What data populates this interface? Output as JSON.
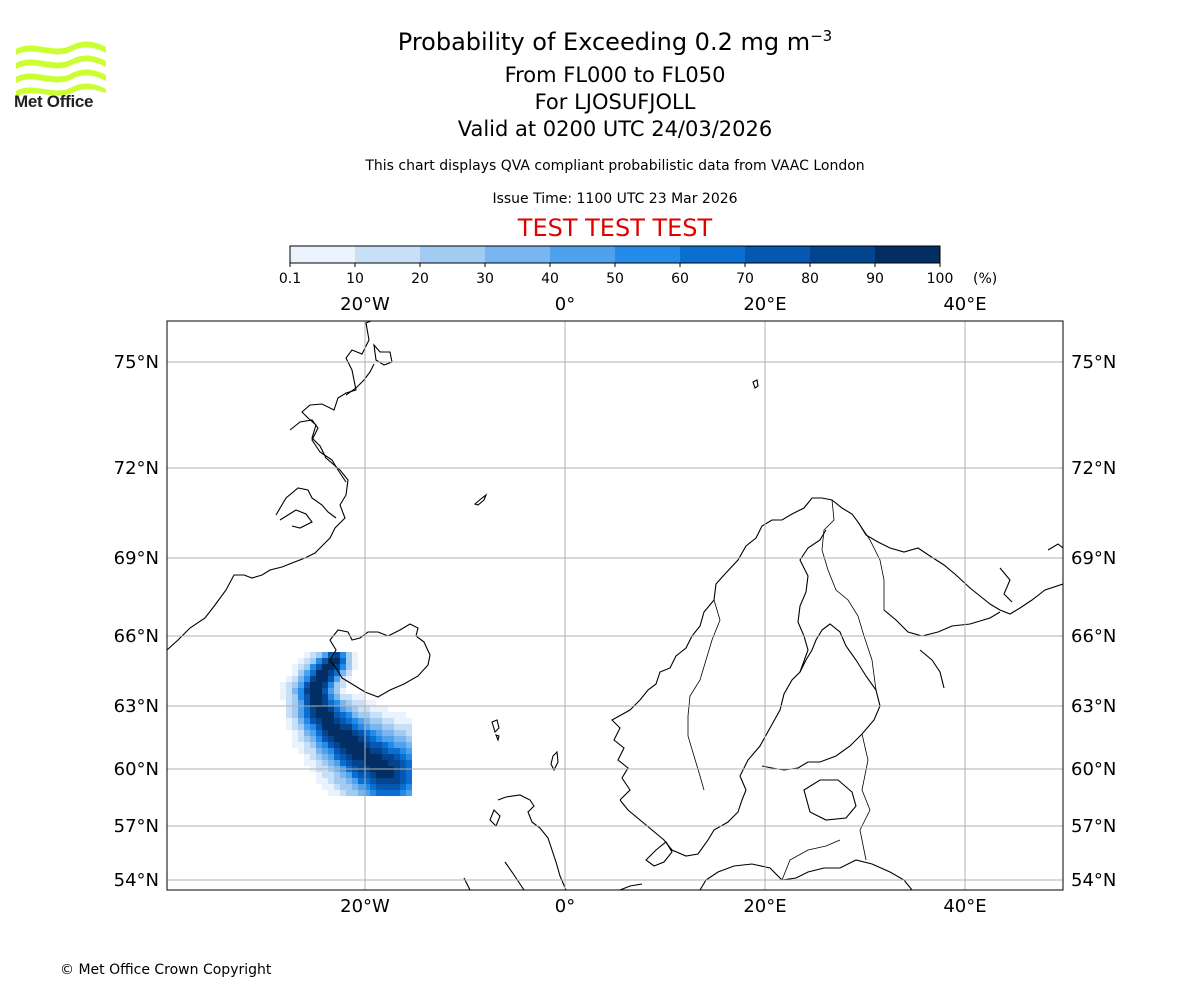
{
  "header": {
    "title": "Probability of Exceeding 0.2 mg m",
    "title_sup": "−3",
    "subtitle_levels": "From FL000 to FL050",
    "subtitle_volcano": "For LJOSUFJOLL",
    "subtitle_valid": "Valid at 0200 UTC 24/03/2026",
    "description": "This chart displays QVA compliant probabilistic data from VAAC London",
    "issue_time": "Issue Time: 1100 UTC 23 Mar 2026",
    "test_banner": "TEST TEST TEST",
    "test_color": "#e00000"
  },
  "logo": {
    "text": "Met Office",
    "icon": "met-office-wave-logo",
    "color": "#ccff33"
  },
  "colorbar": {
    "ticks": [
      "0.1",
      "10",
      "20",
      "30",
      "40",
      "50",
      "60",
      "70",
      "80",
      "90",
      "100"
    ],
    "unit": "(%)",
    "colors": [
      "#eaf3fd",
      "#c7e0f8",
      "#a2cbf2",
      "#79b6ef",
      "#4fa1ec",
      "#258bea",
      "#0a6fd1",
      "#0557b0",
      "#03448e",
      "#022e63"
    ]
  },
  "map": {
    "lon_labels_top": [
      "20°W",
      "0°",
      "20°E",
      "40°E"
    ],
    "lon_labels_bottom": [
      "20°W",
      "0°",
      "20°E",
      "40°E"
    ],
    "lat_labels": [
      "75°N",
      "72°N",
      "69°N",
      "66°N",
      "63°N",
      "60°N",
      "57°N",
      "54°N"
    ],
    "plume_max_probability": 100
  },
  "footer": {
    "copyright": "© Met Office Crown Copyright"
  }
}
